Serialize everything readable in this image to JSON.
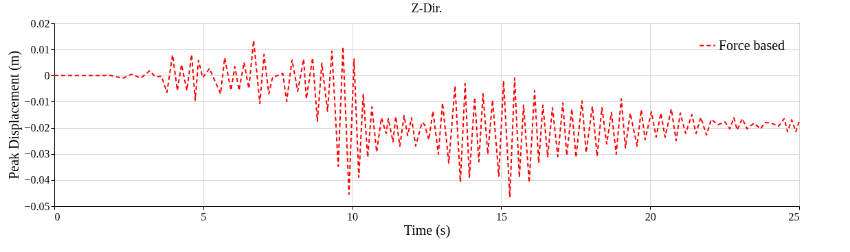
{
  "chart_data": {
    "type": "line",
    "title": "Z-Dir.",
    "xlabel": "Time (s)",
    "ylabel": "Peak Displacement (m)",
    "xlim": [
      0,
      25
    ],
    "xticks": [
      0,
      5,
      10,
      15,
      20,
      25
    ],
    "ylim": [
      -0.05,
      0.02
    ],
    "yticks": [
      -0.05,
      -0.04,
      -0.03,
      -0.02,
      -0.01,
      0,
      0.01,
      0.02
    ],
    "grid": true,
    "legend": "top right",
    "line_style": "dashed",
    "marker": "none",
    "x": [
      0,
      1.9,
      2.3,
      2.6,
      2.9,
      3.2,
      3.4,
      3.6,
      3.78,
      3.97,
      4.13,
      4.27,
      4.45,
      4.61,
      4.73,
      4.84,
      4.98,
      5.21,
      5.58,
      5.72,
      5.93,
      6.06,
      6.2,
      6.37,
      6.53,
      6.69,
      6.9,
      7.04,
      7.2,
      7.33,
      7.45,
      7.67,
      7.8,
      7.98,
      8.17,
      8.37,
      8.46,
      8.67,
      8.83,
      8.98,
      9.17,
      9.32,
      9.53,
      9.69,
      9.89,
      10.06,
      10.22,
      10.37,
      10.52,
      10.66,
      10.82,
      10.98,
      11.14,
      11.21,
      11.37,
      11.46,
      11.6,
      11.74,
      11.86,
      11.99,
      12.13,
      12.34,
      12.43,
      12.57,
      12.71,
      12.89,
      13.03,
      13.24,
      13.45,
      13.63,
      13.79,
      13.93,
      14.11,
      14.25,
      14.39,
      14.55,
      14.71,
      14.92,
      15.08,
      15.29,
      15.45,
      15.61,
      15.75,
      15.94,
      16.12,
      16.26,
      16.4,
      16.56,
      16.72,
      16.9,
      17.07,
      17.2,
      17.37,
      17.51,
      17.71,
      17.85,
      18.06,
      18.22,
      18.38,
      18.54,
      18.7,
      18.86,
      19.03,
      19.17,
      19.33,
      19.56,
      19.7,
      19.83,
      20.04,
      20.2,
      20.36,
      20.5,
      20.71,
      20.87,
      21.01,
      21.19,
      21.4,
      21.54,
      21.7,
      21.89,
      22.05,
      22.28,
      22.51,
      22.67,
      22.81,
      22.92,
      23.09,
      23.25,
      23.48,
      23.71,
      23.85,
      24.08,
      24.31,
      24.5,
      24.61,
      24.75,
      24.89,
      25
    ],
    "series": [
      {
        "name": "Force based",
        "color": "#ff0000",
        "values": [
          0,
          0,
          -0.001,
          0.0005,
          -0.001,
          0.0018,
          -0.0005,
          -0.0003,
          -0.0065,
          0.0079,
          -0.0057,
          0.0042,
          -0.0057,
          0.008,
          -0.0094,
          0.0058,
          -0.0008,
          0.0027,
          -0.007,
          0.0068,
          -0.0057,
          0.0034,
          -0.0057,
          0.005,
          -0.005,
          0.0134,
          -0.0107,
          0.0081,
          -0.007,
          -0.0005,
          -0.0002,
          0.0008,
          -0.0099,
          0.006,
          -0.006,
          0.0063,
          -0.0089,
          0.0068,
          -0.0175,
          0.0047,
          -0.0136,
          0.0094,
          -0.0348,
          0.011,
          -0.0455,
          0.0063,
          -0.039,
          -0.007,
          -0.0313,
          -0.012,
          -0.0293,
          -0.0162,
          -0.0222,
          -0.0165,
          -0.0254,
          -0.0157,
          -0.027,
          -0.0154,
          -0.023,
          -0.0162,
          -0.027,
          -0.018,
          -0.0188,
          -0.0246,
          -0.0136,
          -0.0301,
          -0.0105,
          -0.0335,
          -0.0039,
          -0.0408,
          -0.0031,
          -0.039,
          -0.0084,
          -0.033,
          -0.007,
          -0.0301,
          -0.0094,
          -0.0385,
          -0.002,
          -0.0466,
          -0.001,
          -0.039,
          -0.0113,
          -0.041,
          -0.0057,
          -0.0335,
          -0.0113,
          -0.031,
          -0.0123,
          -0.031,
          -0.0105,
          -0.0306,
          -0.0128,
          -0.0314,
          -0.0097,
          -0.0296,
          -0.0118,
          -0.0309,
          -0.0123,
          -0.0262,
          -0.0141,
          -0.0301,
          -0.0089,
          -0.0277,
          -0.0144,
          -0.027,
          -0.0131,
          -0.0246,
          -0.0139,
          -0.0236,
          -0.0144,
          -0.0236,
          -0.0128,
          -0.0249,
          -0.0144,
          -0.0222,
          -0.0149,
          -0.0222,
          -0.016,
          -0.0228,
          -0.0168,
          -0.0188,
          -0.0178,
          -0.0204,
          -0.0162,
          -0.0209,
          -0.0165,
          -0.0204,
          -0.0183,
          -0.0204,
          -0.018,
          -0.0183,
          -0.0194,
          -0.0165,
          -0.0215,
          -0.017,
          -0.0215,
          -0.0175
        ]
      }
    ]
  }
}
